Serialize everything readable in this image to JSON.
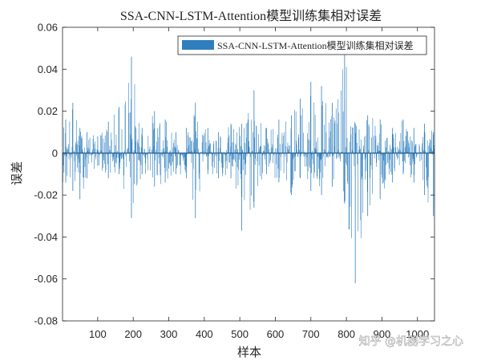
{
  "chart_data": {
    "type": "bar",
    "title": "SSA-CNN-LSTM-Attention模型训练集相对误差",
    "xlabel": "样本",
    "ylabel": "误差",
    "xlim": [
      1,
      1048
    ],
    "ylim": [
      -0.08,
      0.06
    ],
    "x_ticks": [
      100,
      200,
      300,
      400,
      500,
      600,
      700,
      800,
      900,
      1000
    ],
    "x_tick_labels": [
      "100",
      "200",
      "300",
      "400",
      "500",
      "600",
      "700",
      "800",
      "900",
      "1000"
    ],
    "y_ticks": [
      -0.08,
      -0.06,
      -0.04,
      -0.02,
      0,
      0.02,
      0.04,
      0.06
    ],
    "y_tick_labels": [
      "-0.08",
      "-0.06",
      "-0.04",
      "-0.02",
      "0",
      "0.02",
      "0.04",
      "0.06"
    ],
    "grid": false,
    "legend": {
      "position": "top-right",
      "entries": [
        "SSA-CNN-LSTM-Attention模型训练集相对误差"
      ]
    },
    "series": [
      {
        "name": "SSA-CNN-LSTM-Attention模型训练集相对误差",
        "color": "#2f7fbf",
        "n_samples": 1048,
        "envelope": [
          {
            "x": 10,
            "max": 0.016,
            "min": -0.014
          },
          {
            "x": 30,
            "max": 0.024,
            "min": -0.018
          },
          {
            "x": 50,
            "max": 0.012,
            "min": -0.022
          },
          {
            "x": 70,
            "max": 0.01,
            "min": -0.012
          },
          {
            "x": 100,
            "max": 0.008,
            "min": -0.006
          },
          {
            "x": 130,
            "max": 0.015,
            "min": -0.012
          },
          {
            "x": 160,
            "max": 0.022,
            "min": -0.01
          },
          {
            "x": 195,
            "max": 0.046,
            "min": -0.031
          },
          {
            "x": 225,
            "max": 0.012,
            "min": -0.01
          },
          {
            "x": 260,
            "max": 0.02,
            "min": -0.016
          },
          {
            "x": 290,
            "max": 0.016,
            "min": -0.014
          },
          {
            "x": 320,
            "max": 0.01,
            "min": -0.01
          },
          {
            "x": 350,
            "max": 0.012,
            "min": -0.012
          },
          {
            "x": 375,
            "max": 0.024,
            "min": -0.031
          },
          {
            "x": 410,
            "max": 0.012,
            "min": -0.01
          },
          {
            "x": 440,
            "max": 0.01,
            "min": -0.012
          },
          {
            "x": 475,
            "max": 0.014,
            "min": -0.012
          },
          {
            "x": 505,
            "max": 0.014,
            "min": -0.037
          },
          {
            "x": 540,
            "max": 0.03,
            "min": -0.026
          },
          {
            "x": 575,
            "max": 0.012,
            "min": -0.01
          },
          {
            "x": 610,
            "max": 0.016,
            "min": -0.014
          },
          {
            "x": 645,
            "max": 0.018,
            "min": -0.02
          },
          {
            "x": 670,
            "max": 0.026,
            "min": -0.012
          },
          {
            "x": 700,
            "max": 0.034,
            "min": -0.018
          },
          {
            "x": 730,
            "max": 0.032,
            "min": -0.02
          },
          {
            "x": 760,
            "max": 0.024,
            "min": -0.016
          },
          {
            "x": 795,
            "max": 0.047,
            "min": -0.024
          },
          {
            "x": 825,
            "max": 0.014,
            "min": -0.062
          },
          {
            "x": 860,
            "max": 0.018,
            "min": -0.03
          },
          {
            "x": 895,
            "max": 0.016,
            "min": -0.022
          },
          {
            "x": 930,
            "max": 0.012,
            "min": -0.014
          },
          {
            "x": 960,
            "max": 0.016,
            "min": -0.01
          },
          {
            "x": 990,
            "max": 0.012,
            "min": -0.014
          },
          {
            "x": 1020,
            "max": 0.014,
            "min": -0.02
          },
          {
            "x": 1045,
            "max": 0.01,
            "min": -0.03
          }
        ]
      }
    ]
  },
  "watermark": "知乎 @机器学习之心"
}
